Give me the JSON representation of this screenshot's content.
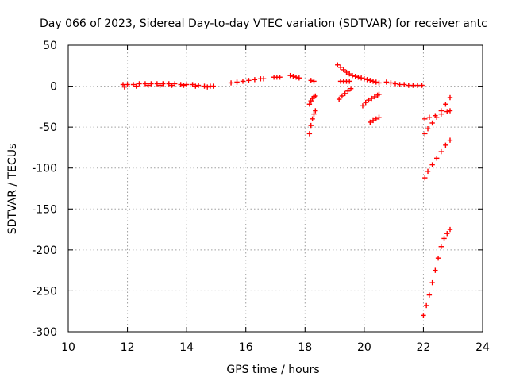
{
  "chart_data": {
    "type": "scatter",
    "title": "Day 066 of 2023, Sidereal Day-to-day VTEC variation (SDTVAR) for receiver antc",
    "xlabel": "GPS time / hours",
    "ylabel": "SDTVAR / TECUs",
    "xlim": [
      10,
      24
    ],
    "ylim": [
      -300,
      50
    ],
    "xticks": [
      10,
      12,
      14,
      16,
      18,
      20,
      22,
      24
    ],
    "yticks": [
      -300,
      -250,
      -200,
      -150,
      -100,
      -50,
      0,
      50
    ],
    "xtick_labels": [
      "10",
      "12",
      "14",
      "16",
      "18",
      "20",
      "22",
      "24"
    ],
    "ytick_labels": [
      "-300",
      "-250",
      "-200",
      "-150",
      "-100",
      "-50",
      "0",
      "50"
    ],
    "grid": true,
    "marker": "+",
    "color": "#ff0000",
    "series": [
      {
        "x": [
          11.85,
          12.0,
          12.2,
          12.4,
          12.6,
          12.8,
          13.0,
          13.2,
          13.4,
          13.6,
          13.8,
          14.0,
          14.2,
          14.4,
          14.6,
          14.8,
          14.9,
          11.9,
          12.3,
          12.7,
          13.1,
          13.5,
          13.9,
          14.3,
          14.7,
          15.5,
          15.7,
          15.9,
          16.1,
          16.3,
          16.5,
          16.6,
          16.95,
          17.05,
          17.15,
          17.5,
          17.6,
          17.7,
          17.8,
          18.2,
          18.3,
          18.15,
          18.2,
          18.25,
          18.3,
          18.35,
          18.15,
          18.2,
          18.25,
          18.3,
          18.35,
          19.1,
          19.2,
          19.3,
          19.4,
          19.5,
          19.6,
          19.7,
          19.8,
          19.9,
          20.0,
          20.1,
          20.2,
          20.3,
          20.4,
          20.5,
          19.2,
          19.3,
          19.4,
          19.5,
          19.15,
          19.25,
          19.35,
          19.45,
          19.55,
          19.95,
          20.05,
          20.15,
          20.25,
          20.35,
          20.45,
          20.5,
          20.2,
          20.3,
          20.4,
          20.5,
          20.75,
          20.9,
          21.05,
          21.2,
          21.35,
          21.5,
          21.65,
          21.8,
          21.95,
          22.05,
          22.2,
          22.4,
          22.6,
          22.8,
          22.9,
          22.05,
          22.15,
          22.3,
          22.45,
          22.6,
          22.75,
          22.9,
          22.05,
          22.15,
          22.3,
          22.45,
          22.6,
          22.75,
          22.9,
          22.0,
          22.1,
          22.2,
          22.3,
          22.4,
          22.5,
          22.6,
          22.7,
          22.8,
          22.9
        ],
        "y": [
          2,
          2,
          2,
          3,
          3,
          3,
          3,
          3,
          3,
          3,
          2,
          2,
          2,
          1,
          0,
          0,
          0,
          -1,
          0,
          1,
          1,
          1,
          1,
          0,
          -1,
          4,
          5,
          6,
          7,
          8,
          9,
          9,
          11,
          11,
          11,
          13,
          12,
          11,
          10,
          7,
          6,
          -22,
          -18,
          -15,
          -13,
          -12,
          -58,
          -48,
          -40,
          -34,
          -30,
          26,
          23,
          20,
          17,
          15,
          13,
          12,
          11,
          10,
          9,
          8,
          7,
          6,
          5,
          4,
          6,
          6,
          6,
          6,
          -16,
          -12,
          -9,
          -6,
          -3,
          -24,
          -20,
          -17,
          -15,
          -13,
          -11,
          -10,
          -44,
          -42,
          -40,
          -38,
          5,
          4,
          3,
          2,
          2,
          1,
          1,
          1,
          1,
          -40,
          -38,
          -36,
          -34,
          -31,
          -30,
          -58,
          -52,
          -45,
          -38,
          -30,
          -22,
          -14,
          -112,
          -104,
          -96,
          -88,
          -80,
          -72,
          -66,
          -280,
          -268,
          -255,
          -240,
          -225,
          -210,
          -196,
          -186,
          -180,
          -175
        ]
      }
    ]
  }
}
